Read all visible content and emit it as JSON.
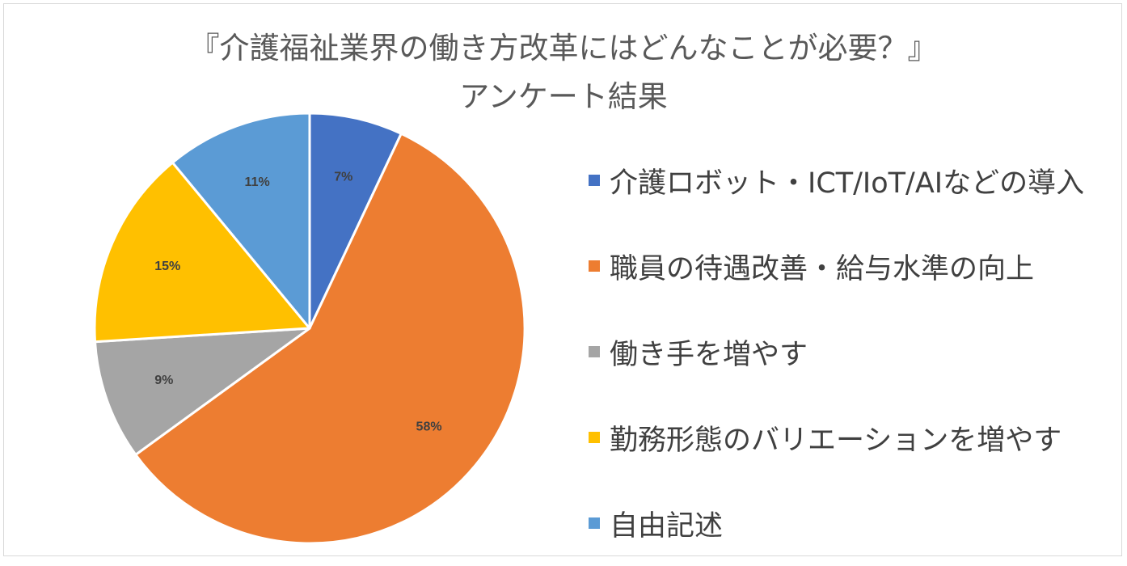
{
  "chart_data": {
    "type": "pie",
    "title_line1": "『介護福祉業界の働き方改革にはどんなことが必要？』",
    "title_line2": "アンケート結果",
    "slices": [
      {
        "label": "介護ロボット・ICT/IoT/AIなどの導入",
        "value": 7,
        "display": "7%",
        "color": "#4472C4"
      },
      {
        "label": "職員の待遇改善・給与水準の向上",
        "value": 58,
        "display": "58%",
        "color": "#ED7D31"
      },
      {
        "label": "働き手を増やす",
        "value": 9,
        "display": "9%",
        "color": "#A5A5A5"
      },
      {
        "label": "勤務形態のバリエーションを増やす",
        "value": 15,
        "display": "15%",
        "color": "#FFC000"
      },
      {
        "label": "自由記述",
        "value": 11,
        "display": "11%",
        "color": "#5B9BD5"
      }
    ],
    "legend_position": "right"
  }
}
